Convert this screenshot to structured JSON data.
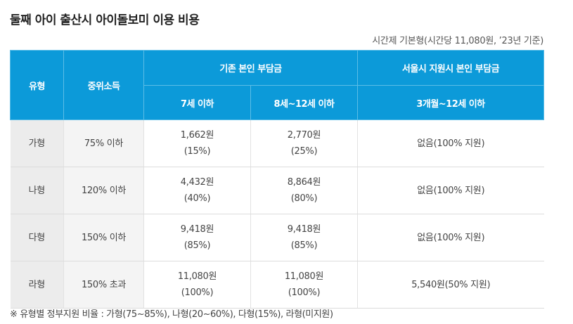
{
  "title": "둘째 아이 출산시 아이돌보미 이용 비용",
  "subtitle": "시간제 기본형(시간당 11,080원, ’23년 기준)",
  "header": {
    "type": "유형",
    "income": "중위소득",
    "existing": "기존 본인 부담금",
    "seoul": "서울시 지원시 본인 부담금",
    "age1": "7세 이하",
    "age2": "8세~12세 이하",
    "age3": "3개월~12세 이하"
  },
  "rows": [
    {
      "type": "가형",
      "income": "75% 이하",
      "v1_amount": "1,662원",
      "v1_pct": "(15%)",
      "v2_amount": "2,770원",
      "v2_pct": "(25%)",
      "seoul": "없음(100% 지원)"
    },
    {
      "type": "나형",
      "income": "120% 이하",
      "v1_amount": "4,432원",
      "v1_pct": "(40%)",
      "v2_amount": "8,864원",
      "v2_pct": "(80%)",
      "seoul": "없음(100% 지원)"
    },
    {
      "type": "다형",
      "income": "150% 이하",
      "v1_amount": "9,418원",
      "v1_pct": "(85%)",
      "v2_amount": "9,418원",
      "v2_pct": "(85%)",
      "seoul": "없음(100% 지원)"
    },
    {
      "type": "라형",
      "income": "150% 초과",
      "v1_amount": "11,080원",
      "v1_pct": "(100%)",
      "v2_amount": "11,080원",
      "v2_pct": "(100%)",
      "seoul": "5,540원(50% 지원)"
    }
  ],
  "note": "※ 유형별 정부지원 비율 : 가형(75~85%), 나형(20~60%), 다형(15%), 라형(미지원)",
  "colors": {
    "header_bg": "#0c9ad9",
    "type_col_bg": "#ececec",
    "income_col_bg": "#f4f4f4"
  }
}
